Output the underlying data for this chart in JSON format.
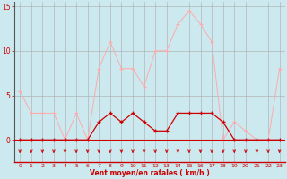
{
  "x": [
    0,
    1,
    2,
    3,
    4,
    5,
    6,
    7,
    8,
    9,
    10,
    11,
    12,
    13,
    14,
    15,
    16,
    17,
    18,
    19,
    20,
    21,
    22,
    23
  ],
  "wind_avg": [
    0,
    0,
    0,
    0,
    0,
    0,
    0,
    2,
    3,
    2,
    3,
    2,
    1,
    1,
    3,
    3,
    3,
    3,
    2,
    0,
    0,
    0,
    0,
    0
  ],
  "wind_gust": [
    5.5,
    3,
    3,
    3,
    0,
    3,
    0,
    8,
    11,
    8,
    8,
    6,
    10,
    10,
    13,
    14.5,
    13,
    11,
    0,
    2,
    1,
    0,
    0,
    8
  ],
  "bg_color": "#cce9ef",
  "grid_color": "#aaaaaa",
  "line_avg_color": "#cc0000",
  "line_gust_color": "#ffaaaa",
  "arrow_color": "#cc0000",
  "xlabel": "Vent moyen/en rafales ( km/h )",
  "ylim_top": 15.5,
  "yticks": [
    0,
    5,
    10,
    15
  ],
  "xticks": [
    0,
    1,
    2,
    3,
    4,
    5,
    6,
    7,
    8,
    9,
    10,
    11,
    12,
    13,
    14,
    15,
    16,
    17,
    18,
    19,
    20,
    21,
    22,
    23
  ]
}
